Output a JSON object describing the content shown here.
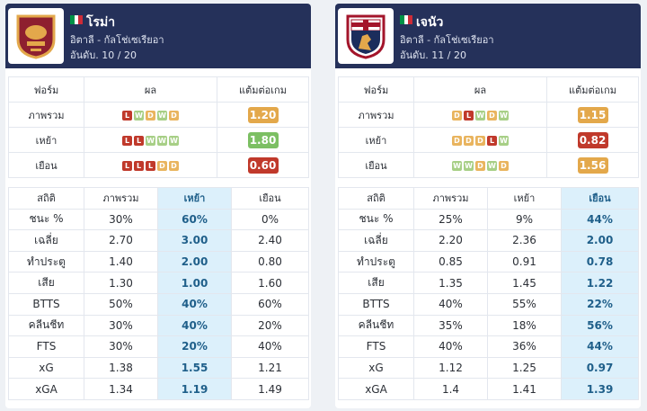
{
  "teams": [
    {
      "id": "home",
      "name": "โรม่า",
      "league": "อิตาลี - กัลโช่เซเรียอา",
      "rank": "อันดับ. 10 / 20",
      "crest_icon": "roma-crest-icon",
      "flag_colors": [
        "#009246",
        "#ffffff",
        "#ce2b37"
      ],
      "form_headers": [
        "ฟอร์ม",
        "ผล",
        "แต้มต่อเกม"
      ],
      "form_rows": [
        {
          "label": "ภาพรวม",
          "results": [
            "L",
            "W",
            "D",
            "W",
            "D"
          ],
          "ppg": "1.20",
          "ppg_color": "yellow"
        },
        {
          "label": "เหย้า",
          "results": [
            "L",
            "L",
            "W",
            "W",
            "W"
          ],
          "ppg": "1.80",
          "ppg_color": "green"
        },
        {
          "label": "เยือน",
          "results": [
            "L",
            "L",
            "L",
            "D",
            "D"
          ],
          "ppg": "0.60",
          "ppg_color": "red"
        }
      ],
      "stats_headers": [
        "สถิติ",
        "ภาพรวม",
        "เหย้า",
        "เยือน"
      ],
      "highlight_col": 2,
      "stats_rows": [
        [
          "ชนะ %",
          "30%",
          "60%",
          "0%"
        ],
        [
          "เฉลี่ย",
          "2.70",
          "3.00",
          "2.40"
        ],
        [
          "ทำประตู",
          "1.40",
          "2.00",
          "0.80"
        ],
        [
          "เสีย",
          "1.30",
          "1.00",
          "1.60"
        ],
        [
          "BTTS",
          "50%",
          "40%",
          "60%"
        ],
        [
          "คลีนชีท",
          "30%",
          "40%",
          "20%"
        ],
        [
          "FTS",
          "30%",
          "20%",
          "40%"
        ],
        [
          "xG",
          "1.38",
          "1.55",
          "1.21"
        ],
        [
          "xGA",
          "1.34",
          "1.19",
          "1.49"
        ]
      ]
    },
    {
      "id": "away",
      "name": "เจนัว",
      "league": "อิตาลี - กัลโช่เซเรียอา",
      "rank": "อันดับ. 11 / 20",
      "crest_icon": "genoa-crest-icon",
      "flag_colors": [
        "#009246",
        "#ffffff",
        "#ce2b37"
      ],
      "form_headers": [
        "ฟอร์ม",
        "ผล",
        "แต้มต่อเกม"
      ],
      "form_rows": [
        {
          "label": "ภาพรวม",
          "results": [
            "D",
            "L",
            "W",
            "D",
            "W"
          ],
          "ppg": "1.15",
          "ppg_color": "yellow"
        },
        {
          "label": "เหย้า",
          "results": [
            "D",
            "D",
            "D",
            "L",
            "W"
          ],
          "ppg": "0.82",
          "ppg_color": "red"
        },
        {
          "label": "เยือน",
          "results": [
            "W",
            "W",
            "D",
            "W",
            "D"
          ],
          "ppg": "1.56",
          "ppg_color": "yellow"
        }
      ],
      "stats_headers": [
        "สถิติ",
        "ภาพรวม",
        "เหย้า",
        "เยือน"
      ],
      "highlight_col": 3,
      "stats_rows": [
        [
          "ชนะ %",
          "25%",
          "9%",
          "44%"
        ],
        [
          "เฉลี่ย",
          "2.20",
          "2.36",
          "2.00"
        ],
        [
          "ทำประตู",
          "0.85",
          "0.91",
          "0.78"
        ],
        [
          "เสีย",
          "1.35",
          "1.45",
          "1.22"
        ],
        [
          "BTTS",
          "40%",
          "55%",
          "22%"
        ],
        [
          "คลีนชีท",
          "35%",
          "18%",
          "56%"
        ],
        [
          "FTS",
          "40%",
          "36%",
          "44%"
        ],
        [
          "xG",
          "1.12",
          "1.25",
          "0.97"
        ],
        [
          "xGA",
          "1.4",
          "1.41",
          "1.39"
        ]
      ]
    }
  ]
}
